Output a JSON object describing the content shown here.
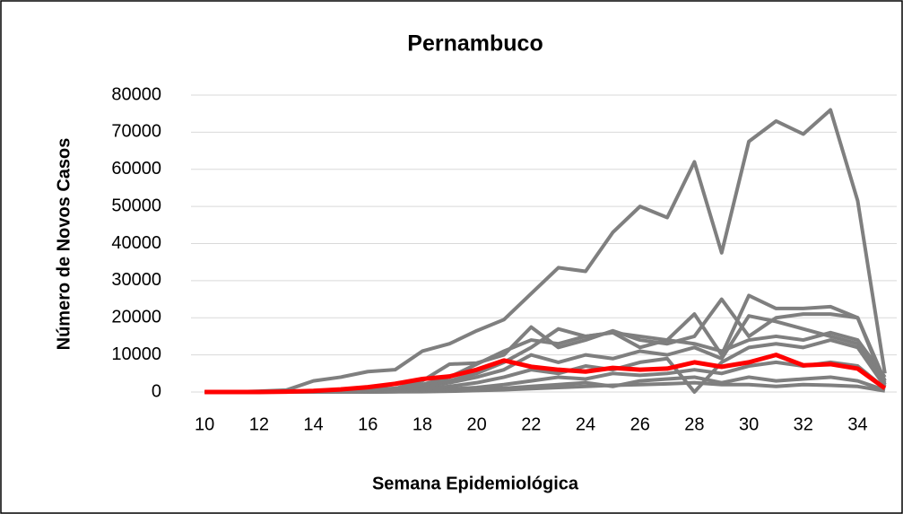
{
  "chart_data": {
    "type": "line",
    "title": "Pernambuco",
    "x_label": "Semana Epidemiológica",
    "y_label": "Número de Novos Casos",
    "x": [
      10,
      11,
      12,
      13,
      14,
      15,
      16,
      17,
      18,
      19,
      20,
      21,
      22,
      23,
      24,
      25,
      26,
      27,
      28,
      29,
      30,
      31,
      32,
      33,
      34,
      35
    ],
    "xlim": [
      9.5,
      35.5
    ],
    "xticks": [
      10,
      12,
      14,
      16,
      18,
      20,
      22,
      24,
      26,
      28,
      30,
      32,
      34
    ],
    "ylim": [
      0,
      80000
    ],
    "yticks": [
      0,
      10000,
      20000,
      30000,
      40000,
      50000,
      60000,
      70000,
      80000
    ],
    "grid": true,
    "series": [
      {
        "color": "#7f7f7f",
        "values": [
          0,
          0,
          0,
          0,
          0,
          0,
          0,
          50,
          100,
          200,
          400,
          600,
          900,
          1200,
          1500,
          1800,
          2000,
          2200,
          2500,
          2000,
          2000,
          1500,
          2000,
          1800,
          1500,
          300
        ]
      },
      {
        "color": "#7f7f7f",
        "values": [
          0,
          0,
          0,
          0,
          0,
          0,
          0,
          100,
          300,
          500,
          800,
          1000,
          1500,
          2000,
          2500,
          1500,
          3000,
          3500,
          4000,
          2500,
          4000,
          3000,
          3500,
          4000,
          3000,
          500
        ]
      },
      {
        "color": "#7f7f7f",
        "values": [
          0,
          0,
          0,
          0,
          0,
          0,
          100,
          200,
          500,
          800,
          1200,
          2000,
          3000,
          4000,
          3500,
          5000,
          4500,
          5000,
          6000,
          5000,
          7000,
          8000,
          7000,
          8000,
          7000,
          1000
        ]
      },
      {
        "color": "#7f7f7f",
        "values": [
          0,
          0,
          0,
          0,
          0,
          0,
          100,
          300,
          800,
          1500,
          2500,
          4000,
          6000,
          5000,
          7000,
          6000,
          8000,
          9000,
          0,
          8000,
          12000,
          13000,
          12000,
          14000,
          12000,
          1500
        ]
      },
      {
        "color": "#7f7f7f",
        "values": [
          0,
          0,
          0,
          0,
          0,
          0,
          200,
          500,
          1500,
          2500,
          4000,
          6000,
          10000,
          8000,
          10000,
          9000,
          11000,
          10000,
          12000,
          9000,
          20500,
          19000,
          17000,
          15000,
          13000,
          2500
        ]
      },
      {
        "color": "#7f7f7f",
        "values": [
          0,
          0,
          0,
          0,
          0,
          100,
          300,
          800,
          2000,
          3000,
          5000,
          8000,
          12000,
          17000,
          15000,
          16000,
          12000,
          14000,
          13000,
          11000,
          14000,
          15000,
          14000,
          16000,
          14000,
          4000
        ]
      },
      {
        "color": "#7f7f7f",
        "values": [
          0,
          0,
          0,
          0,
          0,
          200,
          500,
          900,
          3000,
          7500,
          7800,
          10000,
          17500,
          12000,
          14000,
          16500,
          14000,
          13000,
          15000,
          25000,
          15000,
          20000,
          21000,
          21000,
          20000,
          2000
        ]
      },
      {
        "color": "#7f7f7f",
        "values": [
          0,
          0,
          0,
          0,
          100,
          300,
          600,
          1000,
          2000,
          4000,
          7500,
          11000,
          14000,
          13000,
          15000,
          16000,
          15000,
          14000,
          21000,
          10000,
          26000,
          22500,
          22500,
          23000,
          20000,
          3000
        ]
      },
      {
        "color": "#7f7f7f",
        "values": [
          0,
          0,
          200,
          500,
          3000,
          4000,
          5500,
          6000,
          11000,
          13000,
          16500,
          19500,
          26500,
          33500,
          32500,
          43000,
          50000,
          47000,
          62000,
          37500,
          67500,
          73000,
          69500,
          76000,
          51500,
          5000
        ]
      },
      {
        "color": "#ff0000",
        "values": [
          0,
          0,
          0,
          100,
          300,
          700,
          1300,
          2200,
          3500,
          4200,
          6000,
          8500,
          6800,
          6000,
          5500,
          6500,
          6000,
          6300,
          8000,
          6800,
          8000,
          10000,
          7200,
          7500,
          6300,
          1000
        ]
      }
    ]
  }
}
